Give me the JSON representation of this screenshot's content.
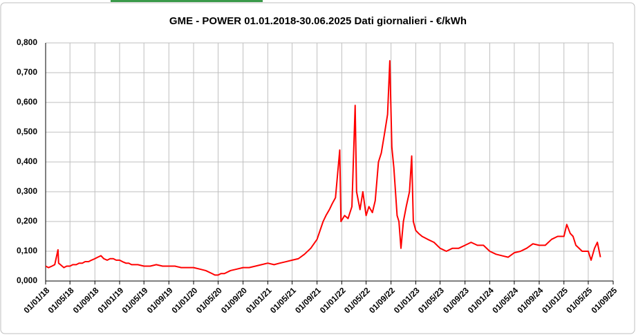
{
  "chart_data": {
    "type": "line",
    "title": "GME - POWER 01.01.2018-30.06.2025 Dati giornalieri - €/kWh",
    "color": "#ff0000",
    "grid": true,
    "x": [
      "01/01/18",
      "15/01/18",
      "01/02/18",
      "15/02/18",
      "03/03/18",
      "06/03/18",
      "15/03/18",
      "01/04/18",
      "15/04/18",
      "01/05/18",
      "15/05/18",
      "01/06/18",
      "15/06/18",
      "01/07/18",
      "15/07/18",
      "01/08/18",
      "15/08/18",
      "01/09/18",
      "15/09/18",
      "01/10/18",
      "15/10/18",
      "01/11/18",
      "15/11/18",
      "01/12/18",
      "15/12/18",
      "01/01/19",
      "15/01/19",
      "01/02/19",
      "15/02/19",
      "01/03/19",
      "01/04/19",
      "01/05/19",
      "01/06/19",
      "01/07/19",
      "01/08/19",
      "01/09/19",
      "01/10/19",
      "01/11/19",
      "01/12/19",
      "01/01/20",
      "01/02/20",
      "01/03/20",
      "01/04/20",
      "15/04/20",
      "01/05/20",
      "15/05/20",
      "01/06/20",
      "01/07/20",
      "01/08/20",
      "01/09/20",
      "01/10/20",
      "01/11/20",
      "01/12/20",
      "01/01/21",
      "01/02/21",
      "01/03/21",
      "01/04/21",
      "01/05/21",
      "01/06/21",
      "01/07/21",
      "01/08/21",
      "01/09/21",
      "01/10/21",
      "15/10/21",
      "01/11/21",
      "15/11/21",
      "01/12/21",
      "22/12/21",
      "28/12/21",
      "15/01/22",
      "01/02/22",
      "20/02/22",
      "08/03/22",
      "15/03/22",
      "01/04/22",
      "15/04/22",
      "01/05/22",
      "15/05/22",
      "01/06/22",
      "15/06/22",
      "01/07/22",
      "15/07/22",
      "01/08/22",
      "15/08/22",
      "26/08/22",
      "05/09/22",
      "15/09/22",
      "01/10/22",
      "10/10/22",
      "20/10/22",
      "01/11/22",
      "15/11/22",
      "01/12/22",
      "12/12/22",
      "20/12/22",
      "01/01/23",
      "15/01/23",
      "01/02/23",
      "01/03/23",
      "01/04/23",
      "01/05/23",
      "01/06/23",
      "01/07/23",
      "01/08/23",
      "01/09/23",
      "01/10/23",
      "01/11/23",
      "01/12/23",
      "01/01/24",
      "01/02/24",
      "01/03/24",
      "01/04/24",
      "01/05/24",
      "01/06/24",
      "01/07/24",
      "01/08/24",
      "01/09/24",
      "01/10/24",
      "01/11/24",
      "01/12/24",
      "01/01/25",
      "15/01/25",
      "01/02/25",
      "15/02/25",
      "01/03/25",
      "01/04/25",
      "01/05/25",
      "15/05/25",
      "01/06/25",
      "15/06/25",
      "30/06/25"
    ],
    "values": [
      0.05,
      0.045,
      0.05,
      0.055,
      0.105,
      0.06,
      0.055,
      0.045,
      0.05,
      0.05,
      0.055,
      0.055,
      0.06,
      0.06,
      0.065,
      0.065,
      0.07,
      0.075,
      0.08,
      0.085,
      0.075,
      0.07,
      0.075,
      0.075,
      0.07,
      0.07,
      0.065,
      0.06,
      0.06,
      0.055,
      0.055,
      0.05,
      0.05,
      0.055,
      0.05,
      0.05,
      0.05,
      0.045,
      0.045,
      0.045,
      0.04,
      0.035,
      0.025,
      0.02,
      0.02,
      0.025,
      0.025,
      0.035,
      0.04,
      0.045,
      0.045,
      0.05,
      0.055,
      0.06,
      0.055,
      0.06,
      0.065,
      0.07,
      0.075,
      0.09,
      0.11,
      0.14,
      0.2,
      0.22,
      0.24,
      0.26,
      0.28,
      0.44,
      0.2,
      0.22,
      0.21,
      0.25,
      0.59,
      0.3,
      0.24,
      0.3,
      0.22,
      0.25,
      0.23,
      0.27,
      0.4,
      0.43,
      0.5,
      0.56,
      0.74,
      0.45,
      0.38,
      0.22,
      0.2,
      0.11,
      0.2,
      0.25,
      0.3,
      0.42,
      0.2,
      0.17,
      0.16,
      0.15,
      0.14,
      0.13,
      0.11,
      0.1,
      0.11,
      0.11,
      0.12,
      0.13,
      0.12,
      0.12,
      0.1,
      0.09,
      0.085,
      0.08,
      0.095,
      0.1,
      0.11,
      0.125,
      0.12,
      0.12,
      0.14,
      0.15,
      0.15,
      0.19,
      0.16,
      0.15,
      0.12,
      0.1,
      0.1,
      0.07,
      0.11,
      0.13,
      0.08
    ],
    "xlim": [
      "01/01/18",
      "01/09/25"
    ],
    "xticks": [
      "01/01/18",
      "01/05/18",
      "01/09/18",
      "01/01/19",
      "01/05/19",
      "01/09/19",
      "01/01/20",
      "01/05/20",
      "01/09/20",
      "01/01/21",
      "01/05/21",
      "01/09/21",
      "01/01/22",
      "01/05/22",
      "01/09/22",
      "01/01/23",
      "01/05/23",
      "01/09/23",
      "01/01/24",
      "01/05/24",
      "01/09/24",
      "01/01/25",
      "01/05/25",
      "01/09/25"
    ],
    "ylim": [
      0,
      0.8
    ],
    "yticks": [
      {
        "value": 0,
        "label": "0,000"
      },
      {
        "value": 0.1,
        "label": "0,100"
      },
      {
        "value": 0.2,
        "label": "0,200"
      },
      {
        "value": 0.3,
        "label": "0,300"
      },
      {
        "value": 0.4,
        "label": "0,400"
      },
      {
        "value": 0.5,
        "label": "0,500"
      },
      {
        "value": 0.6,
        "label": "0,600"
      },
      {
        "value": 0.7,
        "label": "0,700"
      },
      {
        "value": 0.8,
        "label": "0,800"
      }
    ]
  }
}
